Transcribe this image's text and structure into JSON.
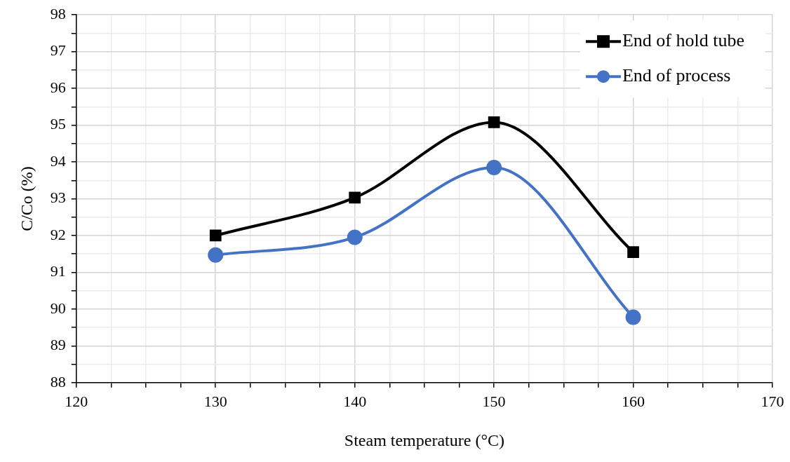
{
  "chart_data": {
    "type": "line",
    "xlabel": "Steam temperature (°C)",
    "ylabel": "C/Co (%)",
    "x": [
      130,
      140,
      150,
      160
    ],
    "series": [
      {
        "name": "End of hold tube",
        "color": "#000000",
        "marker": "square",
        "values": [
          92.0,
          93.03,
          95.08,
          91.55
        ]
      },
      {
        "name": "End of process",
        "color": "#4472c4",
        "marker": "circle",
        "values": [
          91.47,
          91.95,
          93.85,
          89.78
        ]
      }
    ],
    "xlim": [
      120,
      170
    ],
    "xticks": [
      120,
      {
        "value": 122.5,
        "label": null
      },
      {
        "value": 125,
        "label": null
      },
      {
        "value": 127.5,
        "label": null
      },
      130,
      {
        "value": 132.5,
        "label": null
      },
      {
        "value": 135,
        "label": null
      },
      {
        "value": 137.5,
        "label": null
      },
      140,
      {
        "value": 142.5,
        "label": null
      },
      {
        "value": 145,
        "label": null
      },
      {
        "value": 147.5,
        "label": null
      },
      150,
      {
        "value": 152.5,
        "label": null
      },
      {
        "value": 155,
        "label": null
      },
      {
        "value": 157.5,
        "label": null
      },
      160,
      {
        "value": 162.5,
        "label": null
      },
      {
        "value": 165,
        "label": null
      },
      {
        "value": 167.5,
        "label": null
      },
      170
    ],
    "ylim": [
      88,
      98
    ],
    "yticks": [
      88,
      {
        "value": 88.5,
        "label": null
      },
      89,
      {
        "value": 89.5,
        "label": null
      },
      90,
      {
        "value": 90.5,
        "label": null
      },
      91,
      {
        "value": 91.5,
        "label": null
      },
      92,
      {
        "value": 92.5,
        "label": null
      },
      93,
      {
        "value": 93.5,
        "label": null
      },
      94,
      {
        "value": 94.5,
        "label": null
      },
      95,
      {
        "value": 95.5,
        "label": null
      },
      96,
      {
        "value": 96.5,
        "label": null
      },
      97,
      {
        "value": 97.5,
        "label": null
      },
      98
    ],
    "grid": true,
    "legend": "top right",
    "line_style": "solid"
  }
}
